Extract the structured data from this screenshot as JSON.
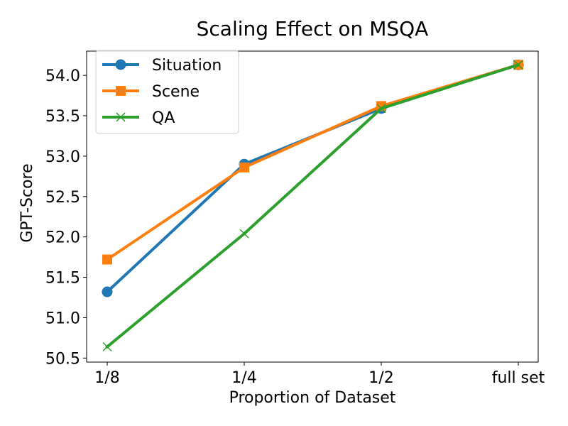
{
  "chart_data": {
    "type": "line",
    "title": "Scaling Effect on MSQA",
    "xlabel": "Proportion of Dataset",
    "ylabel": "GPT-Score",
    "categories": [
      "1/8",
      "1/4",
      "1/2",
      "full set"
    ],
    "ylim": [
      50.45,
      54.3
    ],
    "yticks": [
      50.5,
      51.0,
      51.5,
      52.0,
      52.5,
      53.0,
      53.5,
      54.0
    ],
    "ytick_labels": [
      "50.5",
      "51.0",
      "51.5",
      "52.0",
      "52.5",
      "53.0",
      "53.5",
      "54.0"
    ],
    "grid": false,
    "legend_position": "top-left",
    "series": [
      {
        "name": "Situation",
        "values": [
          51.32,
          52.9,
          53.59,
          54.13
        ],
        "color": "#1f77b4",
        "marker": "circle"
      },
      {
        "name": "Scene",
        "values": [
          51.72,
          52.86,
          53.62,
          54.13
        ],
        "color": "#ff7f0e",
        "marker": "square"
      },
      {
        "name": "QA",
        "values": [
          50.64,
          52.04,
          53.59,
          54.13
        ],
        "color": "#2ca02c",
        "marker": "x"
      }
    ]
  }
}
